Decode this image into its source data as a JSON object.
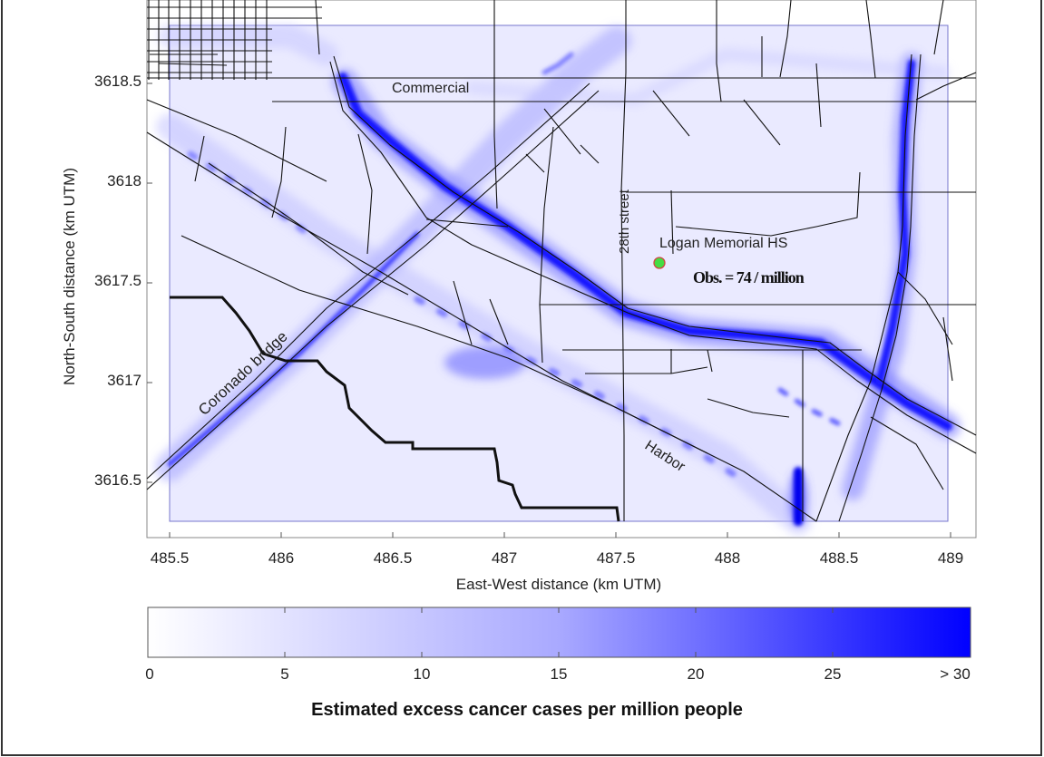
{
  "chart_data": {
    "type": "heatmap",
    "title": "",
    "xlabel": "East-West distance (km UTM)",
    "ylabel": "North-South distance (km UTM)",
    "xlim": [
      485.43,
      489.08
    ],
    "ylim": [
      3616.28,
      3618.85
    ],
    "x_ticks": [
      "485.5",
      "486",
      "486.5",
      "487",
      "487.5",
      "488",
      "488.5",
      "489"
    ],
    "y_ticks": [
      "3616.5",
      "3617",
      "3617.5",
      "3618",
      "3618.5"
    ],
    "colorbar": {
      "title": "Estimated excess cancer cases per million people",
      "range": [
        0,
        30
      ],
      "tick_labels": [
        "0",
        "5",
        "10",
        "15",
        "20",
        "25",
        "> 30"
      ],
      "color_low": "#ffffff",
      "color_high": "#0000ff"
    },
    "annotations": {
      "street_commercial": "Commercial",
      "street_28th": "28th street",
      "street_coronado": "Coronado bridge",
      "street_harbor": "Harbor",
      "school_name": "Logan Memorial HS",
      "school_obs": "Obs. = 74 / million"
    },
    "school_location": {
      "x": 487.7,
      "y": 3617.6
    },
    "colors": {
      "field": "#e8e8ff",
      "roads": "#111111",
      "hotspot": "#0000ff",
      "school_marker": "#33cc33"
    }
  }
}
